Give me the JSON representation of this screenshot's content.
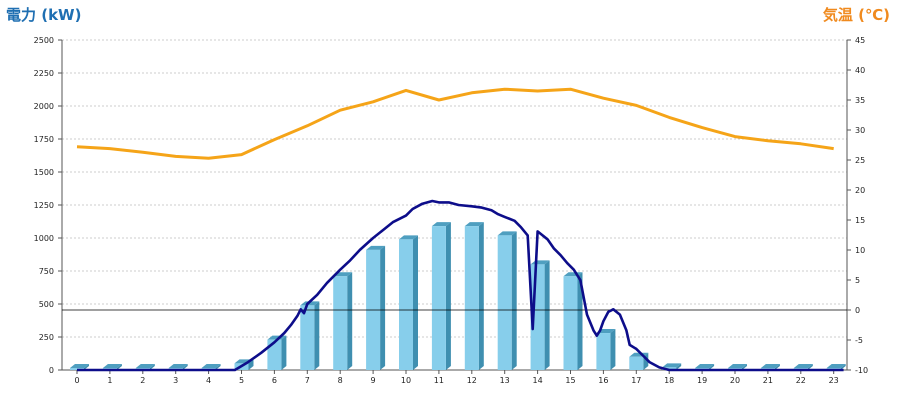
{
  "chart_data": {
    "type": "bar",
    "title_left": "電力 (kW)",
    "title_right": "気温 (℃)",
    "left_axis": {
      "min": 0,
      "max": 2500,
      "ticks": [
        "0",
        "250",
        "500",
        "750",
        "1000",
        "1250",
        "1500",
        "1750",
        "2000",
        "2250",
        "2500"
      ]
    },
    "right_axis": {
      "min": -10,
      "max": 45,
      "ticks": [
        "-10",
        "-5",
        "0",
        "5",
        "10",
        "15",
        "20",
        "25",
        "30",
        "35",
        "40",
        "45"
      ]
    },
    "categories": [
      "0",
      "1",
      "2",
      "3",
      "4",
      "5",
      "6",
      "7",
      "8",
      "9",
      "10",
      "11",
      "12",
      "13",
      "14",
      "15",
      "16",
      "17",
      "18",
      "19",
      "20",
      "21",
      "22",
      "23"
    ],
    "series": [
      {
        "kind": "bar",
        "axis": "left",
        "color": "#87ceeb",
        "values": [
          15,
          15,
          15,
          15,
          15,
          50,
          230,
          490,
          710,
          910,
          990,
          1090,
          1090,
          1020,
          800,
          710,
          280,
          100,
          20,
          15,
          15,
          15,
          15,
          15
        ]
      },
      {
        "kind": "line",
        "axis": "left",
        "color": "#0d0d8a",
        "points": [
          [
            0,
            0
          ],
          [
            4.8,
            0
          ],
          [
            5.2,
            60
          ],
          [
            5.6,
            130
          ],
          [
            6,
            210
          ],
          [
            6.3,
            280
          ],
          [
            6.5,
            340
          ],
          [
            6.7,
            410
          ],
          [
            6.8,
            460
          ],
          [
            6.9,
            430
          ],
          [
            7.0,
            500
          ],
          [
            7.3,
            570
          ],
          [
            7.6,
            660
          ],
          [
            8.0,
            760
          ],
          [
            8.3,
            830
          ],
          [
            8.6,
            910
          ],
          [
            9.0,
            1000
          ],
          [
            9.3,
            1060
          ],
          [
            9.6,
            1120
          ],
          [
            10.0,
            1170
          ],
          [
            10.2,
            1220
          ],
          [
            10.5,
            1260
          ],
          [
            10.8,
            1280
          ],
          [
            11.0,
            1270
          ],
          [
            11.3,
            1270
          ],
          [
            11.6,
            1250
          ],
          [
            12.0,
            1240
          ],
          [
            12.3,
            1230
          ],
          [
            12.6,
            1210
          ],
          [
            12.8,
            1180
          ],
          [
            13.0,
            1160
          ],
          [
            13.3,
            1130
          ],
          [
            13.5,
            1080
          ],
          [
            13.7,
            1020
          ],
          [
            13.85,
            310
          ],
          [
            14.0,
            1050
          ],
          [
            14.1,
            1030
          ],
          [
            14.3,
            990
          ],
          [
            14.5,
            920
          ],
          [
            14.7,
            870
          ],
          [
            14.9,
            810
          ],
          [
            15.1,
            760
          ],
          [
            15.3,
            680
          ],
          [
            15.5,
            420
          ],
          [
            15.7,
            300
          ],
          [
            15.8,
            260
          ],
          [
            15.9,
            300
          ],
          [
            16.0,
            370
          ],
          [
            16.15,
            440
          ],
          [
            16.3,
            460
          ],
          [
            16.5,
            420
          ],
          [
            16.7,
            300
          ],
          [
            16.8,
            190
          ],
          [
            17.0,
            160
          ],
          [
            17.2,
            110
          ],
          [
            17.4,
            60
          ],
          [
            17.7,
            20
          ],
          [
            18.0,
            0
          ],
          [
            23.3,
            0
          ]
        ]
      },
      {
        "kind": "line",
        "axis": "right",
        "color": "#f5a418",
        "points": [
          [
            0,
            27.2
          ],
          [
            1,
            26.9
          ],
          [
            2,
            26.3
          ],
          [
            3,
            25.6
          ],
          [
            4,
            25.3
          ],
          [
            5,
            25.9
          ],
          [
            6,
            28.4
          ],
          [
            7,
            30.7
          ],
          [
            8,
            33.3
          ],
          [
            9,
            34.7
          ],
          [
            10,
            36.6
          ],
          [
            11,
            35
          ],
          [
            12,
            36.2
          ],
          [
            13,
            36.8
          ],
          [
            14,
            36.5
          ],
          [
            15,
            36.8
          ],
          [
            16,
            35.3
          ],
          [
            17,
            34.1
          ],
          [
            18,
            32.1
          ],
          [
            19,
            30.4
          ],
          [
            20,
            28.9
          ],
          [
            21,
            28.2
          ],
          [
            22,
            27.7
          ],
          [
            23,
            26.9
          ]
        ]
      }
    ],
    "grid": true,
    "reference_line": {
      "axis": "right",
      "value": 0
    }
  }
}
